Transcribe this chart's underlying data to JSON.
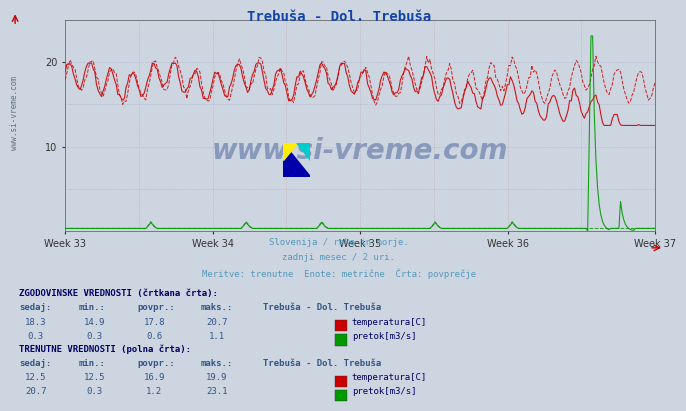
{
  "title": "Trebuša - Dol. Trebuša",
  "title_color": "#1144aa",
  "bg_color": "#ccd5e0",
  "plot_bg_color": "#ccd5e0",
  "grid_color_v": "#cc9999",
  "grid_color_h": "#aaaacc",
  "xlabel_weeks": [
    "Week 33",
    "Week 34",
    "Week 35",
    "Week 36",
    "Week 37"
  ],
  "ylim": [
    0,
    25
  ],
  "yticks": [
    10,
    20
  ],
  "subtitle_lines": [
    "Slovenija / reke in morje.",
    "zadnji mesec / 2 uri.",
    "Meritve: trenutne  Enote: metrične  Črta: povprečje"
  ],
  "subtitle_color": "#5599bb",
  "table_header_color": "#000066",
  "table_value_color": "#335588",
  "table_label_color": "#000066",
  "hist_label": "ZGODOVINSKE VREDNOSTI (črtkana črta):",
  "curr_label": "TRENUTNE VREDNOSTI (polna črta):",
  "col_headers": [
    "sedaj:",
    "min.:",
    "povpr.:",
    "maks.:",
    "Trebuša - Dol. Trebuša"
  ],
  "hist_temp_sedaj": 18.3,
  "hist_temp_min": 14.9,
  "hist_temp_povpr": 17.8,
  "hist_temp_maks": 20.7,
  "hist_flow_sedaj": 0.3,
  "hist_flow_min": 0.3,
  "hist_flow_povpr": 0.6,
  "hist_flow_maks": 1.1,
  "curr_temp_sedaj": 12.5,
  "curr_temp_min": 12.5,
  "curr_temp_povpr": 16.9,
  "curr_temp_maks": 19.9,
  "curr_flow_sedaj": 20.7,
  "curr_flow_min": 0.3,
  "curr_flow_povpr": 1.2,
  "curr_flow_maks": 23.1,
  "temp_color": "#cc0000",
  "flow_color": "#009900",
  "watermark_text": "www.si-vreme.com",
  "watermark_color": "#8899bb",
  "n_points": 360
}
